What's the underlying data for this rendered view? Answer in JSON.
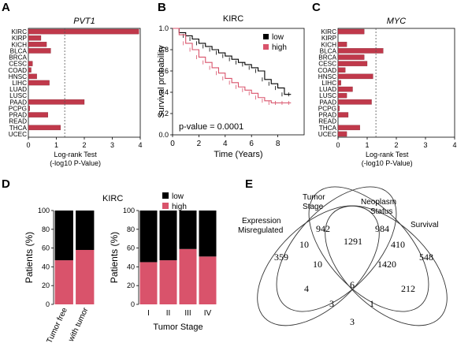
{
  "colors": {
    "bar": "#c0394b",
    "low": "#000000",
    "high": "#d9536b",
    "axis": "#000000",
    "ref_line": "#555555"
  },
  "panels": {
    "a": "A",
    "b": "B",
    "c": "C",
    "d": "D",
    "e": "E"
  },
  "chart_data": [
    {
      "panel": "A",
      "type": "bar",
      "orientation": "horizontal",
      "title": "PVT1",
      "xlabel": "Log-rank Test (-log10 P-Value)",
      "xlabel_lines": [
        "Log-rank Test",
        "(-log10 P-Value)"
      ],
      "xlim": [
        0,
        4
      ],
      "xticks": [
        "0",
        "1",
        "2",
        "3",
        "4"
      ],
      "threshold": 1.3,
      "categories": [
        "KIRC",
        "KIRP",
        "KICH",
        "BLCA",
        "BRCA",
        "CESC",
        "COAD",
        "HNSC",
        "LIHC",
        "LUAD",
        "LUSC",
        "PAAD",
        "PCPG",
        "PRAD",
        "READ",
        "THCA",
        "UCEC"
      ],
      "values": [
        3.95,
        0.45,
        0.65,
        0.8,
        0.0,
        0.15,
        0.1,
        0.3,
        0.75,
        0.0,
        0.0,
        2.0,
        0.05,
        0.7,
        0.0,
        1.15,
        0.0
      ]
    },
    {
      "panel": "B",
      "type": "line",
      "title": "KIRC",
      "xlabel": "Time (Years)",
      "ylabel": "Survival probability",
      "xlim": [
        0,
        10
      ],
      "ylim": [
        0,
        1
      ],
      "xticks": [
        "0",
        "2",
        "4",
        "6",
        "8"
      ],
      "yticks": [
        "0.0",
        "0.2",
        "0.4",
        "0.6",
        "0.8",
        "1.0"
      ],
      "annotation": "p-value = 0.0001",
      "legend": [
        "low",
        "high"
      ],
      "legend_position": "top-right",
      "series": [
        {
          "name": "low",
          "x": [
            0,
            0.5,
            1,
            1.5,
            2,
            2.5,
            3,
            3.5,
            4,
            4.5,
            5,
            5.5,
            6,
            6.5,
            7,
            7.5,
            8,
            8.5,
            9
          ],
          "y": [
            1.0,
            0.96,
            0.93,
            0.9,
            0.86,
            0.83,
            0.8,
            0.77,
            0.74,
            0.71,
            0.68,
            0.66,
            0.63,
            0.6,
            0.52,
            0.48,
            0.44,
            0.38,
            0.38
          ]
        },
        {
          "name": "high",
          "x": [
            0,
            0.5,
            1,
            1.5,
            2,
            2.5,
            3,
            3.5,
            4,
            4.5,
            5,
            5.5,
            6,
            6.5,
            7,
            7.5,
            8,
            8.5,
            9
          ],
          "y": [
            1.0,
            0.94,
            0.86,
            0.8,
            0.73,
            0.68,
            0.63,
            0.58,
            0.53,
            0.49,
            0.45,
            0.42,
            0.39,
            0.35,
            0.32,
            0.3,
            0.3,
            0.3,
            0.3
          ]
        }
      ]
    },
    {
      "panel": "C",
      "type": "bar",
      "orientation": "horizontal",
      "title": "MYC",
      "xlabel": "Log-rank Test (-log10 P-Value)",
      "xlabel_lines": [
        "Log-rank Test",
        "(-log10 P-Value)"
      ],
      "xlim": [
        0,
        4
      ],
      "xticks": [
        "0",
        "1",
        "2",
        "3",
        "4"
      ],
      "threshold": 1.3,
      "categories": [
        "KIRC",
        "KIRP",
        "KICH",
        "BLCA",
        "BRCA",
        "CESC",
        "COAD",
        "HNSC",
        "LIHC",
        "LUAD",
        "LUSC",
        "PAAD",
        "PCPG",
        "PRAD",
        "READ",
        "THCA",
        "UCEC"
      ],
      "values": [
        0.9,
        0.0,
        0.3,
        1.55,
        0.9,
        1.0,
        0.25,
        1.2,
        0.1,
        0.5,
        0.3,
        1.15,
        0.05,
        0.35,
        0.0,
        0.75,
        0.3
      ]
    },
    {
      "panel": "D",
      "type": "bar",
      "stacked": true,
      "title": "KIRC",
      "ylabel": "Patients (%)",
      "ylim": [
        0,
        100
      ],
      "yticks": [
        "0",
        "20",
        "40",
        "60",
        "80",
        "100"
      ],
      "legend": [
        "low",
        "high"
      ],
      "legend_position": "top-right",
      "categories": [
        "Tumor free",
        "with tumor"
      ],
      "series": [
        {
          "name": "high",
          "values": [
            47,
            58
          ]
        },
        {
          "name": "low",
          "values": [
            53,
            42
          ]
        }
      ]
    },
    {
      "panel": "D",
      "type": "bar",
      "stacked": true,
      "ylabel": "Patients (%)",
      "xlabel": "Tumor Stage",
      "ylim": [
        0,
        100
      ],
      "yticks": [
        "0",
        "20",
        "40",
        "60",
        "80",
        "100"
      ],
      "categories": [
        "I",
        "II",
        "III",
        "IV"
      ],
      "series": [
        {
          "name": "high",
          "values": [
            45,
            47,
            59,
            51
          ]
        },
        {
          "name": "low",
          "values": [
            55,
            53,
            41,
            49
          ]
        }
      ]
    },
    {
      "panel": "E",
      "type": "venn",
      "sets": [
        "Expression Misregulated",
        "Tumor Stage",
        "Neoplasm Status",
        "Survival"
      ],
      "set_labels": {
        "expr": [
          "Expression",
          "Misregulated"
        ],
        "tumor": [
          "Tumor",
          "Stage"
        ],
        "neo": [
          "Neoplasm",
          "Status"
        ],
        "surv": [
          "Survival"
        ]
      },
      "regions": [
        {
          "key": "E",
          "value": "359"
        },
        {
          "key": "T",
          "value": "942"
        },
        {
          "key": "N",
          "value": "984"
        },
        {
          "key": "S",
          "value": "548"
        },
        {
          "key": "ET",
          "value": "10"
        },
        {
          "key": "TN",
          "value": "1291"
        },
        {
          "key": "NS",
          "value": "410"
        },
        {
          "key": "ETN",
          "value": "10"
        },
        {
          "key": "TNS",
          "value": "1420"
        },
        {
          "key": "ETNS",
          "value": "6"
        },
        {
          "key": "EN",
          "value": "4"
        },
        {
          "key": "TS",
          "value": "212"
        },
        {
          "key": "ENS",
          "value": "3"
        },
        {
          "key": "ETS",
          "value": "1"
        },
        {
          "key": "ES",
          "value": "3"
        }
      ]
    }
  ]
}
